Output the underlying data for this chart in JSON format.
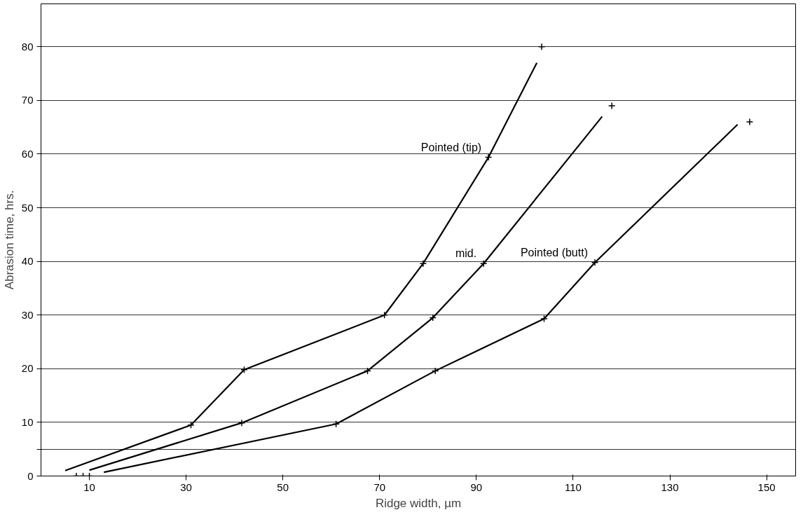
{
  "chart_data": {
    "type": "line",
    "xlabel": "Ridge width, µm",
    "ylabel": "Abrasion time, hrs.",
    "xlim": [
      0,
      156
    ],
    "ylim": [
      0,
      88
    ],
    "xticks": [
      10,
      30,
      50,
      70,
      90,
      110,
      130,
      150
    ],
    "yticks": [
      0,
      {
        "value": 5,
        "label": null
      },
      10,
      20,
      30,
      40,
      50,
      60,
      70,
      80
    ],
    "grid": "y",
    "marker": "none",
    "line_style": "solid",
    "series": [
      {
        "name": "Pointed (butt)",
        "color": "#000000",
        "x": [
          13,
          61,
          81.5,
          104,
          114.5,
          144
        ],
        "values": [
          0.7,
          9.7,
          19.6,
          29.3,
          39.8,
          65.5
        ]
      },
      {
        "name": "mid.",
        "color": "#000000",
        "x": [
          10,
          41.5,
          67.5,
          81,
          91.5,
          116
        ],
        "values": [
          1.1,
          9.9,
          19.6,
          29.5,
          39.6,
          67
        ]
      },
      {
        "name": "Pointed (tip)",
        "color": "#000000",
        "x": [
          5,
          31,
          42,
          71,
          79,
          92.5,
          102.5
        ],
        "values": [
          1,
          9.5,
          19.8,
          30,
          39.6,
          59.4,
          77
        ]
      },
      {
        "type": "scatter",
        "marker": "cross",
        "color": "#000000",
        "x": [
          10,
          61,
          81.5,
          104,
          114.5,
          146.5
        ],
        "values": [
          0,
          9.7,
          19.6,
          29.3,
          39.8,
          66
        ]
      },
      {
        "type": "scatter",
        "marker": "cross",
        "color": "#000000",
        "x": [
          8.7,
          41.5,
          67.5,
          81,
          91.5,
          118
        ],
        "values": [
          0,
          9.9,
          19.6,
          29.5,
          39.6,
          69
        ]
      },
      {
        "type": "scatter",
        "marker": "cross",
        "color": "#000000",
        "x": [
          7.3,
          31,
          42,
          71,
          79,
          92.5,
          103.5
        ],
        "values": [
          0,
          9.5,
          19.8,
          30,
          39.6,
          59.4,
          80
        ]
      }
    ]
  }
}
